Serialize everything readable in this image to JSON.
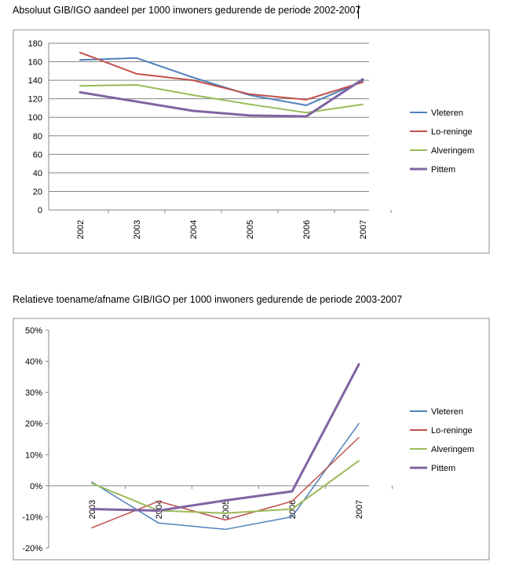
{
  "chart_data": [
    {
      "type": "line",
      "title": "Absoluut GIB/IGO aandeel per 1000 inwoners gedurende de periode 2002-2007",
      "categories": [
        "2002",
        "2003",
        "2004",
        "2005",
        "2006",
        "2007"
      ],
      "ylim": [
        0,
        180
      ],
      "yticks": [
        "0",
        "20",
        "40",
        "60",
        "80",
        "100",
        "120",
        "140",
        "160",
        "180"
      ],
      "grid": true,
      "legend": "right",
      "series": [
        {
          "name": "Vleteren",
          "color": "#4f81bd",
          "values": [
            162,
            164,
            143,
            124,
            113,
            139
          ]
        },
        {
          "name": "Lo-reninge",
          "color": "#c0504d",
          "values": [
            170,
            147,
            140,
            125,
            119,
            138
          ]
        },
        {
          "name": "Alveringem",
          "color": "#9bbb59",
          "values": [
            134,
            135,
            124,
            114,
            105,
            114
          ]
        },
        {
          "name": "Pittem",
          "color": "#8064a2",
          "values": [
            127,
            117,
            107,
            102,
            101,
            141
          ]
        }
      ]
    },
    {
      "type": "line",
      "title": "Relatieve toename/afname GIB/IGO per 1000 inwoners gedurende de periode 2003-2007",
      "categories": [
        "2003",
        "2004",
        "2005",
        "2006",
        "2007"
      ],
      "ylim": [
        -20,
        50
      ],
      "yticks": [
        "-20%",
        "-10%",
        "0%",
        "10%",
        "20%",
        "30%",
        "40%",
        "50%"
      ],
      "grid": false,
      "legend": "right",
      "series": [
        {
          "name": "Vleteren",
          "color": "#4f81bd",
          "values": [
            1.2,
            -12,
            -14,
            -10,
            20
          ]
        },
        {
          "name": "Lo-reninge",
          "color": "#c0504d",
          "values": [
            -13.5,
            -5,
            -11,
            -5,
            15.5
          ]
        },
        {
          "name": "Alveringem",
          "color": "#9bbb59",
          "values": [
            0.8,
            -8,
            -8.8,
            -7.5,
            8
          ]
        },
        {
          "name": "Pittem",
          "color": "#8064a2",
          "values": [
            -7.5,
            -8,
            -4.7,
            -1.8,
            39
          ]
        }
      ]
    }
  ]
}
